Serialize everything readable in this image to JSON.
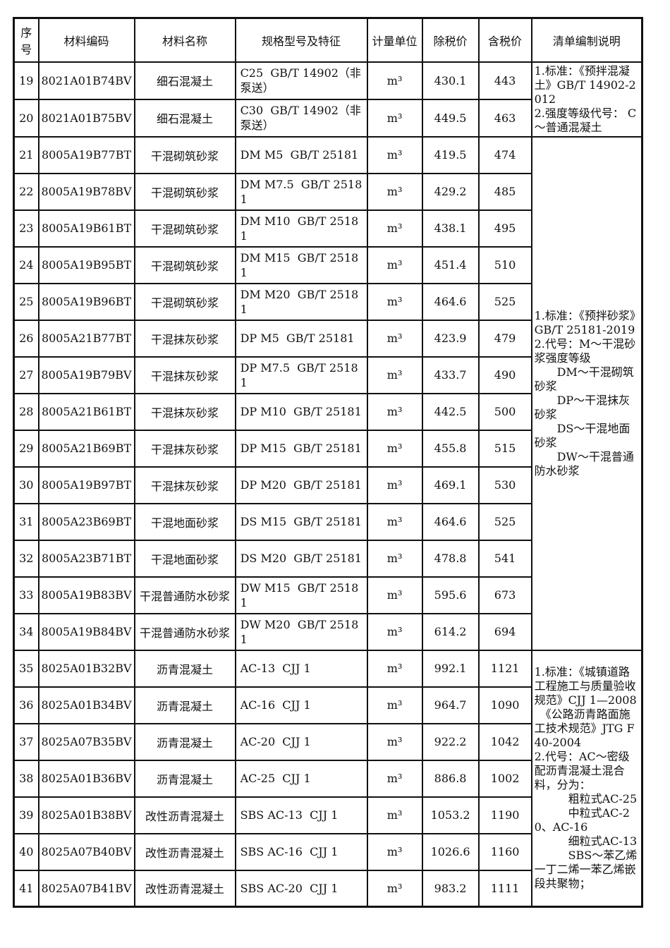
{
  "page": {
    "background_color": "#ffffff",
    "border_color": "#111111",
    "text_color": "#111111"
  },
  "table": {
    "headers": {
      "no": "序号",
      "code": "材料编码",
      "name": "材料名称",
      "spec": "规格型号及特征",
      "unit": "计量单位",
      "price_ex_tax": "除税价",
      "price_inc_tax": "含税价",
      "notes": "清单编制说明"
    },
    "rows": [
      {
        "no": "19",
        "code": "8021A01B74BV",
        "name": "细石混凝土",
        "spec": "C25  GB/T 14902（非泵送）",
        "unit": "m³",
        "price_ex_tax": "430.1",
        "price_inc_tax": "443"
      },
      {
        "no": "20",
        "code": "8021A01B75BV",
        "name": "细石混凝土",
        "spec": "C30  GB/T 14902（非泵送）",
        "unit": "m³",
        "price_ex_tax": "449.5",
        "price_inc_tax": "463"
      },
      {
        "no": "21",
        "code": "8005A19B77BT",
        "name": "干混砌筑砂浆",
        "spec": "DM M5  GB/T 25181",
        "unit": "m³",
        "price_ex_tax": "419.5",
        "price_inc_tax": "474"
      },
      {
        "no": "22",
        "code": "8005A19B78BV",
        "name": "干混砌筑砂浆",
        "spec": "DM M7.5  GB/T 25181",
        "unit": "m³",
        "price_ex_tax": "429.2",
        "price_inc_tax": "485"
      },
      {
        "no": "23",
        "code": "8005A19B61BT",
        "name": "干混砌筑砂浆",
        "spec": "DM M10  GB/T 25181",
        "unit": "m³",
        "price_ex_tax": "438.1",
        "price_inc_tax": "495"
      },
      {
        "no": "24",
        "code": "8005A19B95BT",
        "name": "干混砌筑砂浆",
        "spec": "DM M15  GB/T 25181",
        "unit": "m³",
        "price_ex_tax": "451.4",
        "price_inc_tax": "510"
      },
      {
        "no": "25",
        "code": "8005A19B96BT",
        "name": "干混砌筑砂浆",
        "spec": "DM M20  GB/T 25181",
        "unit": "m³",
        "price_ex_tax": "464.6",
        "price_inc_tax": "525"
      },
      {
        "no": "26",
        "code": "8005A21B77BT",
        "name": "干混抹灰砂浆",
        "spec": "DP M5  GB/T 25181",
        "unit": "m³",
        "price_ex_tax": "423.9",
        "price_inc_tax": "479"
      },
      {
        "no": "27",
        "code": "8005A19B79BV",
        "name": "干混抹灰砂浆",
        "spec": "DP M7.5  GB/T 25181",
        "unit": "m³",
        "price_ex_tax": "433.7",
        "price_inc_tax": "490"
      },
      {
        "no": "28",
        "code": "8005A21B61BT",
        "name": "干混抹灰砂浆",
        "spec": "DP M10  GB/T 25181",
        "unit": "m³",
        "price_ex_tax": "442.5",
        "price_inc_tax": "500"
      },
      {
        "no": "29",
        "code": "8005A21B69BT",
        "name": "干混抹灰砂浆",
        "spec": "DP M15  GB/T 25181",
        "unit": "m³",
        "price_ex_tax": "455.8",
        "price_inc_tax": "515"
      },
      {
        "no": "30",
        "code": "8005A19B97BT",
        "name": "干混抹灰砂浆",
        "spec": "DP M20  GB/T 25181",
        "unit": "m³",
        "price_ex_tax": "469.1",
        "price_inc_tax": "530"
      },
      {
        "no": "31",
        "code": "8005A23B69BT",
        "name": "干混地面砂浆",
        "spec": "DS M15  GB/T 25181",
        "unit": "m³",
        "price_ex_tax": "464.6",
        "price_inc_tax": "525"
      },
      {
        "no": "32",
        "code": "8005A23B71BT",
        "name": "干混地面砂浆",
        "spec": "DS M20  GB/T 25181",
        "unit": "m³",
        "price_ex_tax": "478.8",
        "price_inc_tax": "541"
      },
      {
        "no": "33",
        "code": "8005A19B83BV",
        "name": "干混普通防水砂浆",
        "spec": "DW M15  GB/T 25181",
        "unit": "m³",
        "price_ex_tax": "595.6",
        "price_inc_tax": "673"
      },
      {
        "no": "34",
        "code": "8005A19B84BV",
        "name": "干混普通防水砂浆",
        "spec": "DW M20  GB/T 25181",
        "unit": "m³",
        "price_ex_tax": "614.2",
        "price_inc_tax": "694"
      },
      {
        "no": "35",
        "code": "8025A01B32BV",
        "name": "沥青混凝土",
        "spec": "AC-13  CJJ 1",
        "unit": "m³",
        "price_ex_tax": "992.1",
        "price_inc_tax": "1121"
      },
      {
        "no": "36",
        "code": "8025A01B34BV",
        "name": "沥青混凝土",
        "spec": "AC-16  CJJ 1",
        "unit": "m³",
        "price_ex_tax": "964.7",
        "price_inc_tax": "1090"
      },
      {
        "no": "37",
        "code": "8025A07B35BV",
        "name": "沥青混凝土",
        "spec": "AC-20  CJJ 1",
        "unit": "m³",
        "price_ex_tax": "922.2",
        "price_inc_tax": "1042"
      },
      {
        "no": "38",
        "code": "8025A01B36BV",
        "name": "沥青混凝土",
        "spec": "AC-25  CJJ 1",
        "unit": "m³",
        "price_ex_tax": "886.8",
        "price_inc_tax": "1002"
      },
      {
        "no": "39",
        "code": "8025A01B38BV",
        "name": "改性沥青混凝土",
        "spec": "SBS AC-13  CJJ 1",
        "unit": "m³",
        "price_ex_tax": "1053.2",
        "price_inc_tax": "1190"
      },
      {
        "no": "40",
        "code": "8025A07B40BV",
        "name": "改性沥青混凝土",
        "spec": "SBS AC-16  CJJ 1",
        "unit": "m³",
        "price_ex_tax": "1026.6",
        "price_inc_tax": "1160"
      },
      {
        "no": "41",
        "code": "8025A07B41BV",
        "name": "改性沥青混凝土",
        "spec": "SBS AC-20  CJJ 1",
        "unit": "m³",
        "price_ex_tax": "983.2",
        "price_inc_tax": "1111"
      }
    ],
    "notes": [
      {
        "rows": "19-20",
        "start_index": 0,
        "rowspan": 2,
        "valign": "top",
        "text": "1.标准：《预拌混凝土》GB/T 14902-2012\n2.强度等级代号： C～普通混凝土"
      },
      {
        "rows": "21-34",
        "start_index": 2,
        "rowspan": 14,
        "valign": "middle",
        "text": "1.标准：《预拌砂浆》GB/T 25181-2019\n2.代号：M～干混砂浆强度等级\n　　DM～干混砌筑砂浆\n　　DP～干混抹灰砂浆\n　　DS～干混地面砂浆\n　　DW～干混普通防水砂浆"
      },
      {
        "rows": "35-41",
        "start_index": 16,
        "rowspan": 7,
        "valign": "middle",
        "text": "1.标准：《城镇道路工程施工与质量验收规范》CJJ 1—2008\n　《公路沥青路面施工技术规范》JTG F40-2004\n2.代号：AC～密级配沥青混凝土混合料，分为：\n　　　粗粒式AC-25\n　　　中粒式AC-20、AC-16\n　　　细粒式AC-13\n　　　SBS～苯乙烯一丁二烯一苯乙烯嵌段共聚物；"
      }
    ]
  }
}
